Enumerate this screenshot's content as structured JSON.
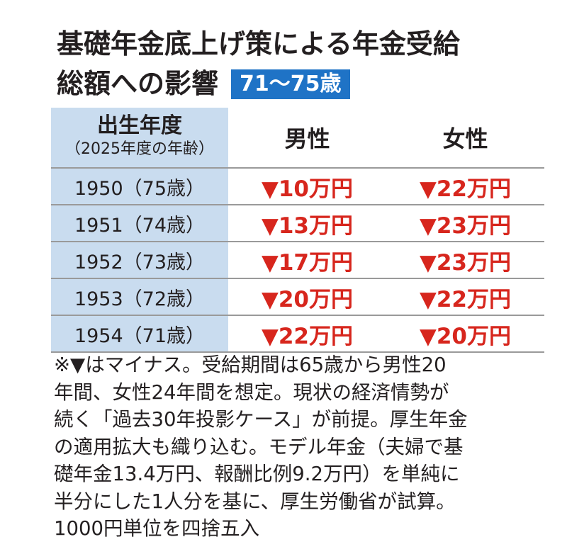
{
  "header": {
    "title_line1": "基礎年金底上げ策による年金受給",
    "title_line2": "総額への影響",
    "badge": "71〜75歳"
  },
  "table": {
    "header_left_main": "出生年度",
    "header_left_sub": "（2025年度の年齢）",
    "col_male": "男性",
    "col_female": "女性",
    "rows": [
      {
        "year": "1950（75歳）",
        "male": "▼10万円",
        "female": "▼22万円"
      },
      {
        "year": "1951（74歳）",
        "male": "▼13万円",
        "female": "▼23万円"
      },
      {
        "year": "1952（73歳）",
        "male": "▼17万円",
        "female": "▼23万円"
      },
      {
        "year": "1953（72歳）",
        "male": "▼20万円",
        "female": "▼22万円"
      },
      {
        "year": "1954（71歳）",
        "male": "▼22万円",
        "female": "▼20万円"
      }
    ]
  },
  "note": {
    "lines": [
      "※▼はマイナス。受給期間は65歳から男性20",
      "年間、女性24年間を想定。現状の経済情勢が",
      "続く「過去30年投影ケース」が前提。厚生年金",
      "の適用拡大も織り込む。モデル年金（夫婦で基",
      "礎年金13.4万円、報酬比例9.2万円）を単純に",
      "半分にした1人分を基に、厚生労働省が試算。",
      "1000円単位を四捨五入"
    ]
  },
  "colors": {
    "accent_blue": "#1f73c6",
    "header_cell_bg": "#c9dcef",
    "minus_red": "#d7261d"
  }
}
